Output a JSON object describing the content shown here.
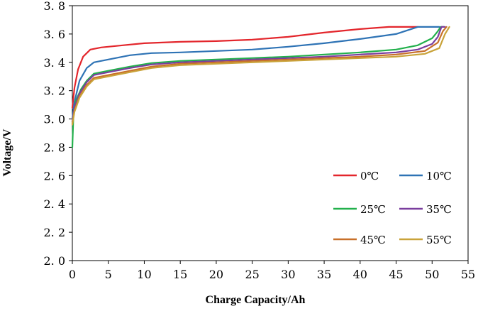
{
  "chart_data": {
    "type": "line",
    "xlabel": "Charge Capacity/Ah",
    "ylabel": "Voltage/V",
    "xlim": [
      0,
      55
    ],
    "ylim": [
      2.0,
      3.8
    ],
    "x_ticks": [
      0,
      5,
      10,
      15,
      20,
      25,
      30,
      35,
      40,
      45,
      50,
      55
    ],
    "y_ticks": [
      2.0,
      2.2,
      2.4,
      2.6,
      2.8,
      3.0,
      3.2,
      3.4,
      3.6,
      3.8
    ],
    "x_tick_labels": [
      "0",
      "5",
      "10",
      "15",
      "20",
      "25",
      "30",
      "35",
      "40",
      "45",
      "50",
      "55"
    ],
    "y_tick_labels": [
      "2. 0",
      "2. 2",
      "2. 4",
      "2. 6",
      "2. 8",
      "3. 0",
      "3. 2",
      "3. 4",
      "3. 6",
      "3. 8"
    ],
    "grid": false,
    "legend_placement": "bottom-right",
    "series": [
      {
        "name": "0℃",
        "color": "#e3262c",
        "x": [
          0,
          0.3,
          0.8,
          1.5,
          2.5,
          4,
          7,
          10,
          15,
          20,
          25,
          30,
          35,
          40,
          44,
          48
        ],
        "y": [
          3.08,
          3.22,
          3.35,
          3.44,
          3.49,
          3.505,
          3.52,
          3.535,
          3.545,
          3.55,
          3.56,
          3.58,
          3.61,
          3.635,
          3.65,
          3.65
        ]
      },
      {
        "name": "10℃",
        "color": "#2e73b5",
        "x": [
          0,
          0.3,
          1,
          2,
          3,
          5,
          8,
          11,
          15,
          20,
          25,
          30,
          35,
          40,
          45,
          48,
          51
        ],
        "y": [
          3.0,
          3.12,
          3.27,
          3.36,
          3.4,
          3.42,
          3.45,
          3.465,
          3.47,
          3.48,
          3.49,
          3.51,
          3.535,
          3.565,
          3.6,
          3.65,
          3.65
        ]
      },
      {
        "name": "25℃",
        "color": "#22b04c",
        "x": [
          0,
          0.15,
          0.5,
          1.2,
          2,
          3,
          5,
          8,
          11,
          15,
          20,
          25,
          30,
          35,
          40,
          45,
          48,
          50,
          50.8,
          51.2,
          51.6
        ],
        "y": [
          2.8,
          3.02,
          3.13,
          3.21,
          3.27,
          3.32,
          3.34,
          3.37,
          3.395,
          3.41,
          3.42,
          3.43,
          3.44,
          3.455,
          3.47,
          3.49,
          3.52,
          3.57,
          3.62,
          3.65,
          3.65
        ]
      },
      {
        "name": "35℃",
        "color": "#7a3e9e",
        "x": [
          0,
          0.3,
          1,
          2,
          3,
          5,
          8,
          11,
          15,
          20,
          25,
          30,
          35,
          40,
          45,
          48,
          50,
          50.8,
          51.3,
          51.8
        ],
        "y": [
          2.98,
          3.08,
          3.18,
          3.26,
          3.31,
          3.33,
          3.36,
          3.385,
          3.4,
          3.41,
          3.42,
          3.43,
          3.44,
          3.455,
          3.47,
          3.49,
          3.53,
          3.58,
          3.65,
          3.65
        ]
      },
      {
        "name": "45℃",
        "color": "#c8702a",
        "x": [
          0,
          0.3,
          1,
          2,
          3,
          5,
          8,
          11,
          15,
          20,
          25,
          30,
          35,
          40,
          45,
          49,
          50.8,
          51.5,
          52
        ],
        "y": [
          2.97,
          3.06,
          3.16,
          3.24,
          3.29,
          3.31,
          3.34,
          3.37,
          3.39,
          3.4,
          3.41,
          3.42,
          3.43,
          3.44,
          3.455,
          3.48,
          3.54,
          3.62,
          3.65
        ]
      },
      {
        "name": "55℃",
        "color": "#c9a33a",
        "x": [
          0,
          0.3,
          1,
          2,
          3,
          5,
          8,
          11,
          15,
          20,
          25,
          30,
          35,
          40,
          45,
          49,
          51,
          51.8,
          52.4
        ],
        "y": [
          2.96,
          3.05,
          3.15,
          3.23,
          3.28,
          3.3,
          3.33,
          3.36,
          3.38,
          3.39,
          3.4,
          3.41,
          3.42,
          3.43,
          3.44,
          3.46,
          3.5,
          3.6,
          3.65
        ]
      }
    ]
  }
}
